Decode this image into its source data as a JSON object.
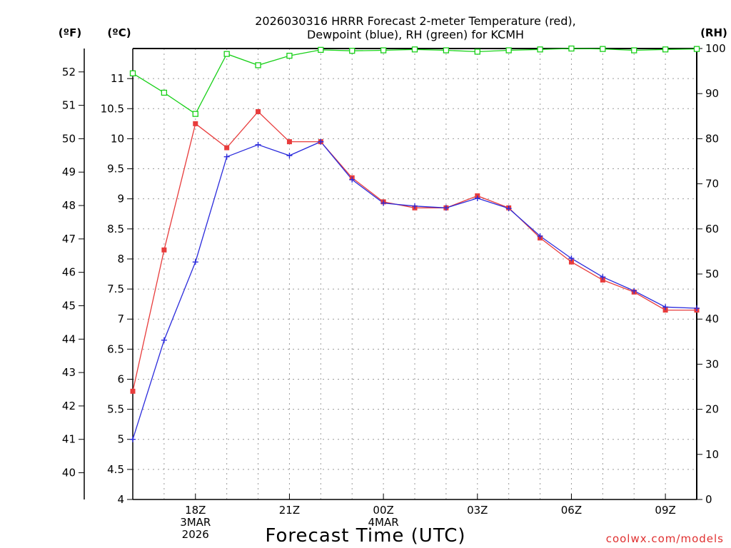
{
  "chart_data": {
    "type": "line",
    "title_line1": "2026030316 HRRR Forecast 2-meter Temperature (red),",
    "title_line2": "Dewpoint (blue), RH (green) for KCMH",
    "xlabel": "Forecast Time (UTC)",
    "credit": "coolwx.com/models",
    "units": {
      "fahrenheit": "(ºF)",
      "celsius": "(ºC)",
      "rh": "(RH)"
    },
    "x_hours": [
      16,
      17,
      18,
      19,
      20,
      21,
      22,
      23,
      24,
      25,
      26,
      27,
      28,
      29,
      30,
      31,
      32,
      33,
      34
    ],
    "xlim": [
      16,
      34
    ],
    "x_ticks": [
      {
        "hour": 18,
        "lines": [
          "18Z",
          "3MAR",
          "2026"
        ]
      },
      {
        "hour": 21,
        "lines": [
          "21Z"
        ]
      },
      {
        "hour": 24,
        "lines": [
          "00Z",
          "4MAR"
        ]
      },
      {
        "hour": 27,
        "lines": [
          "03Z"
        ]
      },
      {
        "hour": 30,
        "lines": [
          "06Z"
        ]
      },
      {
        "hour": 33,
        "lines": [
          "09Z"
        ]
      }
    ],
    "ylim_celsius": [
      4,
      11.5
    ],
    "celsius_ticks": [
      "4",
      "4.5",
      "5",
      "5.5",
      "6",
      "6.5",
      "7",
      "7.5",
      "8",
      "8.5",
      "9",
      "9.5",
      "10",
      "10.5",
      "11"
    ],
    "fahrenheit_ticks": [
      "40",
      "41",
      "42",
      "43",
      "44",
      "45",
      "46",
      "47",
      "48",
      "49",
      "50",
      "51",
      "52"
    ],
    "rh_ticks": [
      "0",
      "10",
      "20",
      "30",
      "40",
      "50",
      "60",
      "70",
      "80",
      "90",
      "100"
    ],
    "colors": {
      "temperature": "#e83c3c",
      "dewpoint": "#2b2bdc",
      "rh": "#18d018"
    },
    "series": [
      {
        "name": "Temperature",
        "axis": "celsius",
        "marker": "filled-square",
        "values": [
          5.8,
          8.15,
          10.25,
          9.85,
          10.45,
          9.95,
          9.95,
          9.35,
          8.95,
          8.85,
          8.85,
          9.05,
          8.85,
          8.35,
          7.95,
          7.65,
          7.45,
          7.15,
          7.15
        ]
      },
      {
        "name": "Dewpoint",
        "axis": "celsius",
        "marker": "plus",
        "values": [
          5.0,
          6.65,
          7.95,
          9.7,
          9.9,
          9.72,
          9.95,
          9.32,
          8.93,
          8.88,
          8.85,
          9.01,
          8.84,
          8.38,
          8.01,
          7.7,
          7.47,
          7.2,
          7.18
        ]
      },
      {
        "name": "RH",
        "axis": "rh",
        "marker": "open-square",
        "values": [
          94.5,
          90.2,
          85.5,
          98.8,
          96.3,
          98.4,
          99.7,
          99.5,
          99.6,
          99.8,
          99.6,
          99.3,
          99.6,
          99.8,
          100,
          99.9,
          99.6,
          99.8,
          99.9
        ]
      }
    ]
  }
}
